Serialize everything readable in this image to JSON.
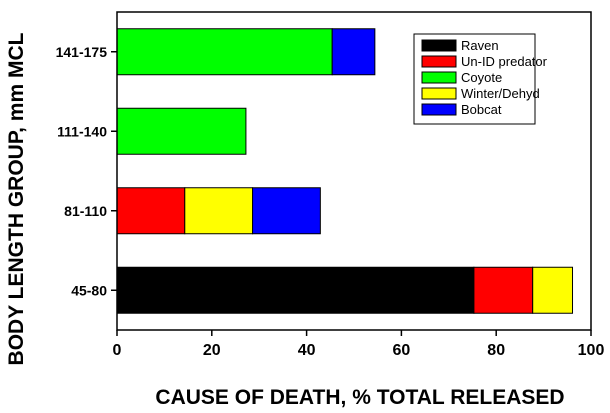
{
  "chart_data": {
    "type": "bar",
    "orientation": "horizontal",
    "stacked": true,
    "xlabel": "CAUSE OF DEATH, % TOTAL RELEASED",
    "ylabel": "BODY LENGTH GROUP, mm MCL",
    "xlim": [
      0,
      100
    ],
    "xticks": [
      0,
      20,
      40,
      60,
      80,
      100
    ],
    "grid": false,
    "legend_position": "top-right",
    "categories": [
      "45-80",
      "81-110",
      "111-140",
      "141-175"
    ],
    "series": [
      {
        "name": "Raven",
        "color": "#000000",
        "values": [
          75.3,
          0,
          0,
          0
        ]
      },
      {
        "name": "Un-ID predator",
        "color": "#ff0000",
        "values": [
          12.4,
          14.3,
          0,
          0
        ]
      },
      {
        "name": "Coyote",
        "color": "#00ff00",
        "values": [
          0,
          0,
          27.2,
          45.4
        ]
      },
      {
        "name": "Winter/Dehyd",
        "color": "#ffff00",
        "values": [
          8.4,
          14.3,
          0,
          0
        ]
      },
      {
        "name": "Bobcat",
        "color": "#0000ff",
        "values": [
          0,
          14.3,
          0,
          9.0
        ]
      }
    ]
  }
}
